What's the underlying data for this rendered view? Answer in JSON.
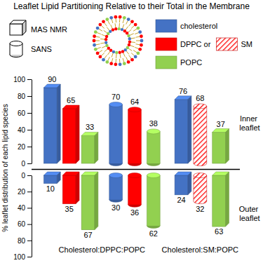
{
  "chart_data": {
    "type": "bar",
    "title": "Leaflet Lipid Partitioning Relative to their Total in the Membrane",
    "y_label": "% leaflet distribution of each lipid species",
    "ylim": [
      0,
      100
    ],
    "yticks": [
      0,
      20,
      40,
      60,
      80,
      100
    ],
    "data_labels": true,
    "categories": [
      "Cholesterol:DPPC:POPC",
      "Cholesterol:DPPC:POPC",
      "Cholesterol:SM:POPC"
    ],
    "leaflets": [
      "Inner leaflet",
      "Outer leaflet"
    ],
    "legend_shapes": [
      {
        "label": "MAS NMR",
        "marker": "cube"
      },
      {
        "label": "SANS",
        "marker": "cylinder"
      }
    ],
    "series": [
      {
        "name": "cholesterol",
        "color": "#4472c4",
        "marker": [
          "cube",
          "cylinder",
          "cube"
        ],
        "values": [
          90,
          70,
          76
        ],
        "outer_values": [
          10,
          30,
          24
        ]
      },
      {
        "name": "DPPC or",
        "color": "#ff0000",
        "marker": [
          "cube",
          "cylinder",
          null
        ],
        "values": [
          65,
          64,
          null
        ],
        "outer_values": [
          35,
          36,
          null
        ]
      },
      {
        "name": "SM",
        "color": "#ff0000",
        "line_style": "hatched",
        "marker": [
          null,
          null,
          "cylinder"
        ],
        "values": [
          null,
          null,
          68
        ],
        "outer_values": [
          null,
          null,
          32
        ]
      },
      {
        "name": "POPC",
        "color": "#92d050",
        "marker": [
          "cube",
          "cylinder",
          "cube"
        ],
        "values": [
          33,
          38,
          37
        ],
        "outer_values": [
          67,
          62,
          63
        ]
      }
    ]
  }
}
